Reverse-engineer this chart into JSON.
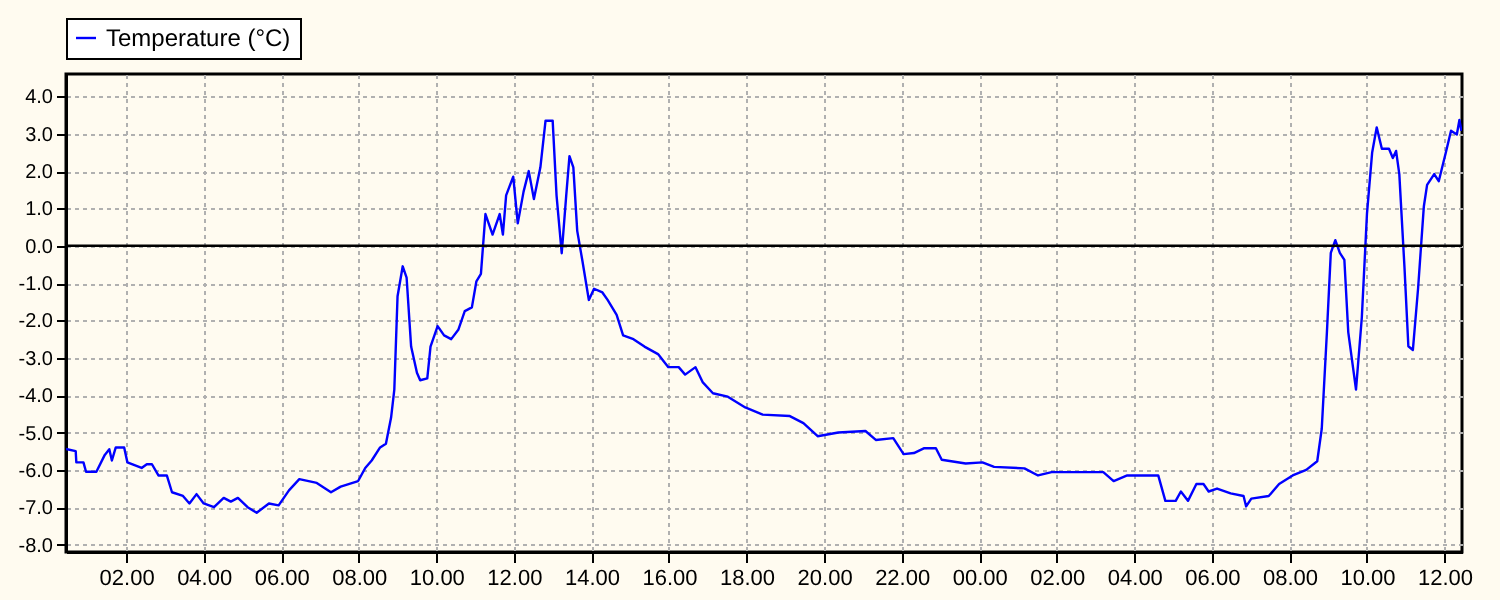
{
  "chart_data": {
    "type": "line",
    "x": [
      "--01-01T00:27",
      "--01-01T00:42",
      "--01-01T00:43",
      "--01-01T00:54",
      "--01-01T00:58",
      "--01-01T01:14",
      "--01-01T01:27",
      "--01-01T01:34",
      "--01-01T01:38",
      "--01-01T01:44",
      "--01-01T01:57",
      "--01-01T02:02",
      "--01-01T02:24",
      "--01-01T02:32",
      "--01-01T02:40",
      "--01-01T02:50",
      "--01-01T03:03",
      "--01-01T03:11",
      "--01-01T03:28",
      "--01-01T03:38",
      "--01-01T03:49",
      "--01-01T04:00",
      "--01-01T04:16",
      "--01-01T04:31",
      "--01-01T04:42",
      "--01-01T04:53",
      "--01-01T05:08",
      "--01-01T05:22",
      "--01-01T05:41",
      "--01-01T05:56",
      "--01-01T06:12",
      "--01-01T06:28",
      "--01-01T06:55",
      "--01-01T07:17",
      "--01-01T07:32",
      "--01-01T07:59",
      "--01-01T08:10",
      "--01-01T08:20",
      "--01-01T08:33",
      "--01-01T08:42",
      "--01-01T08:50",
      "--01-01T08:55",
      "--01-01T09:00",
      "--01-01T09:08",
      "--01-01T09:14",
      "--01-01T09:21",
      "--01-01T09:30",
      "--01-01T09:35",
      "--01-01T09:46",
      "--01-01T09:51",
      "--01-01T10:02",
      "--01-01T10:12",
      "--01-01T10:23",
      "--01-01T10:34",
      "--01-01T10:44",
      "--01-01T10:55",
      "--01-01T11:02",
      "--01-01T11:09",
      "--01-01T11:16",
      "--01-01T11:27",
      "--01-01T11:38",
      "--01-01T11:43",
      "--01-01T11:48",
      "--01-01T11:59",
      "--01-01T12:06",
      "--01-01T12:15",
      "--01-01T12:23",
      "--01-01T12:31",
      "--01-01T12:41",
      "--01-01T12:49",
      "--01-01T13:00",
      "--01-01T13:06",
      "--01-01T13:14",
      "--01-01T13:21",
      "--01-01T13:26",
      "--01-01T13:32",
      "--01-01T13:38",
      "--01-01T13:46",
      "--01-01T13:56",
      "--01-01T14:04",
      "--01-01T14:17",
      "--01-01T14:25",
      "--01-01T14:39",
      "--01-01T14:49",
      "--01-01T15:05",
      "--01-01T15:22",
      "--01-01T15:43",
      "--01-01T15:59",
      "--01-01T16:15",
      "--01-01T16:25",
      "--01-01T16:41",
      "--01-01T16:52",
      "--01-01T17:08",
      "--01-01T17:31",
      "--01-01T17:58",
      "--01-01T18:25",
      "--01-01T19:07",
      "--01-01T19:28",
      "--01-01T19:50",
      "--01-01T20:22",
      "--01-01T21:04",
      "--01-01T21:20",
      "--01-01T21:47",
      "--01-01T22:03",
      "--01-01T22:19",
      "--01-01T22:35",
      "--01-01T22:53",
      "--01-01T23:02",
      "--01-01T23:39",
      "--01-02T00:05",
      "--01-02T00:23",
      "--01-02T01:10",
      "--01-02T01:31",
      "--01-02T01:52",
      "--01-02T03:12",
      "--01-02T03:28",
      "--01-02T03:49",
      "--01-02T04:37",
      "--01-02T04:48",
      "--01-02T05:04",
      "--01-02T05:12",
      "--01-02T05:23",
      "--01-02T05:36",
      "--01-02T05:47",
      "--01-02T05:55",
      "--01-02T06:08",
      "--01-02T06:29",
      "--01-02T06:49",
      "--01-02T06:53",
      "--01-02T07:01",
      "--01-02T07:28",
      "--01-02T07:44",
      "--01-02T08:05",
      "--01-02T08:26",
      "--01-02T08:43",
      "--01-02T08:50",
      "--01-02T08:58",
      "--01-02T09:04",
      "--01-02T09:11",
      "--01-02T09:18",
      "--01-02T09:25",
      "--01-02T09:31",
      "--01-02T09:43",
      "--01-02T09:52",
      "--01-02T10:00",
      "--01-02T10:08",
      "--01-02T10:15",
      "--01-02T10:23",
      "--01-02T10:34",
      "--01-02T10:40",
      "--01-02T10:45",
      "--01-02T10:50",
      "--01-02T10:58",
      "--01-02T11:04",
      "--01-02T11:11",
      "--01-02T11:19",
      "--01-02T11:28",
      "--01-02T11:33",
      "--01-02T11:44",
      "--01-02T11:51",
      "--01-02T12:02",
      "--01-02T12:10",
      "--01-02T12:19",
      "--01-02T12:23",
      "--01-02T12:26"
    ],
    "series": [
      {
        "name": "Temperature (°C)",
        "color": "#0000ff",
        "values": [
          -5.44,
          -5.5,
          -5.8,
          -5.8,
          -6.05,
          -6.05,
          -5.6,
          -5.45,
          -5.75,
          -5.4,
          -5.4,
          -5.8,
          -5.95,
          -5.85,
          -5.85,
          -6.15,
          -6.15,
          -6.6,
          -6.7,
          -6.9,
          -6.65,
          -6.9,
          -7.0,
          -6.75,
          -6.85,
          -6.75,
          -7.0,
          -7.15,
          -6.9,
          -6.95,
          -6.55,
          -6.25,
          -6.35,
          -6.6,
          -6.45,
          -6.3,
          -5.95,
          -5.75,
          -5.4,
          -5.3,
          -4.6,
          -3.85,
          -1.35,
          -0.55,
          -0.85,
          -2.7,
          -3.4,
          -3.6,
          -3.55,
          -2.7,
          -2.15,
          -2.4,
          -2.5,
          -2.25,
          -1.75,
          -1.65,
          -0.95,
          -0.75,
          0.85,
          0.3,
          0.85,
          0.3,
          1.35,
          1.85,
          0.6,
          1.45,
          2.0,
          1.25,
          2.1,
          3.35,
          3.35,
          1.35,
          -0.2,
          1.35,
          2.4,
          2.1,
          0.4,
          -0.4,
          -1.45,
          -1.15,
          -1.25,
          -1.45,
          -1.85,
          -2.4,
          -2.5,
          -2.7,
          -2.9,
          -3.25,
          -3.25,
          -3.45,
          -3.25,
          -3.65,
          -3.95,
          -4.04,
          -4.33,
          -4.52,
          -4.56,
          -4.75,
          -5.1,
          -5.0,
          -4.96,
          -5.2,
          -5.15,
          -5.58,
          -5.55,
          -5.42,
          -5.42,
          -5.73,
          -5.83,
          -5.8,
          -5.92,
          -5.96,
          -6.15,
          -6.06,
          -6.06,
          -6.3,
          -6.15,
          -6.15,
          -6.83,
          -6.83,
          -6.58,
          -6.83,
          -6.38,
          -6.38,
          -6.58,
          -6.5,
          -6.63,
          -6.7,
          -6.98,
          -6.77,
          -6.7,
          -6.38,
          -6.15,
          -6.0,
          -5.77,
          -4.9,
          -2.31,
          -0.19,
          0.15,
          -0.19,
          -0.38,
          -2.31,
          -3.85,
          -1.92,
          0.87,
          2.5,
          3.17,
          2.6,
          2.6,
          2.35,
          2.54,
          1.92,
          -0.58,
          -2.69,
          -2.79,
          -1.15,
          1.06,
          1.63,
          1.92,
          1.73,
          2.5,
          3.08,
          2.98,
          3.37,
          3.08
        ]
      }
    ],
    "xlim": [
      "--01-01T00:27",
      "--01-02T12:27"
    ],
    "xticks": [
      {
        "value": "--01-01T02:00",
        "label": "02.00"
      },
      {
        "value": "--01-01T04:00",
        "label": "04.00"
      },
      {
        "value": "--01-01T06:00",
        "label": "06.00"
      },
      {
        "value": "--01-01T08:00",
        "label": "08.00"
      },
      {
        "value": "--01-01T10:00",
        "label": "10.00"
      },
      {
        "value": "--01-01T12:00",
        "label": "12.00"
      },
      {
        "value": "--01-01T14:00",
        "label": "14.00"
      },
      {
        "value": "--01-01T16:00",
        "label": "16.00"
      },
      {
        "value": "--01-01T18:00",
        "label": "18.00"
      },
      {
        "value": "--01-01T20:00",
        "label": "20.00"
      },
      {
        "value": "--01-01T22:00",
        "label": "22.00"
      },
      {
        "value": "--01-02T00:00",
        "label": "00.00"
      },
      {
        "value": "--01-02T02:00",
        "label": "02.00"
      },
      {
        "value": "--01-02T04:00",
        "label": "04.00"
      },
      {
        "value": "--01-02T06:00",
        "label": "06.00"
      },
      {
        "value": "--01-02T08:00",
        "label": "08.00"
      },
      {
        "value": "--01-02T10:00",
        "label": "10.00"
      },
      {
        "value": "--01-02T12:00",
        "label": "12.00"
      }
    ],
    "ylim": [
      -8.2,
      4.6
    ],
    "yticks": [
      {
        "value": 4,
        "label": "4.0"
      },
      {
        "value": 3,
        "label": "3.0"
      },
      {
        "value": 2,
        "label": "2.0"
      },
      {
        "value": 1,
        "label": "1.0"
      },
      {
        "value": 0,
        "label": "0.0"
      },
      {
        "value": -1,
        "label": "-1.0"
      },
      {
        "value": -2,
        "label": "-2.0"
      },
      {
        "value": -3,
        "label": "-3.0"
      },
      {
        "value": -4,
        "label": "-4.0"
      },
      {
        "value": -5,
        "label": "-5.0"
      },
      {
        "value": -6,
        "label": "-6.0"
      },
      {
        "value": -7,
        "label": "-7.0"
      },
      {
        "value": -8,
        "label": "-8.0"
      }
    ],
    "ref_lines": [
      {
        "axis": "y",
        "value": 0,
        "color": "#000000"
      }
    ],
    "grid": true,
    "legend": "top",
    "marker": "none",
    "line_style": "solid"
  }
}
